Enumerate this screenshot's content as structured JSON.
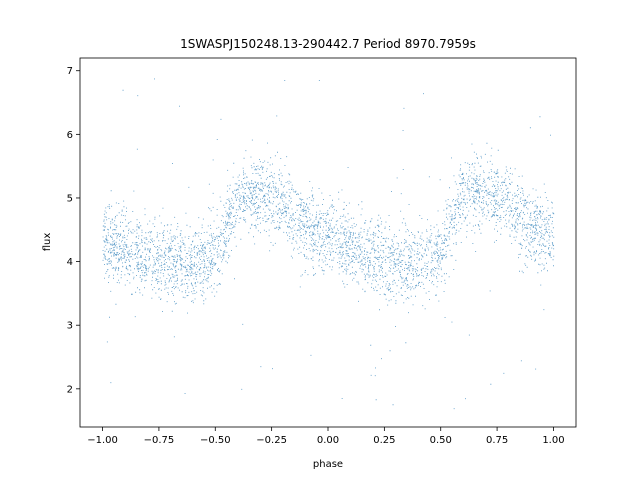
{
  "chart_data": {
    "type": "scatter",
    "title": "1SWASPJ150248.13-290442.7 Period 8970.7959s",
    "xlabel": "phase",
    "ylabel": "flux",
    "xlim": [
      -1.1,
      1.1
    ],
    "ylim": [
      1.4,
      7.2
    ],
    "xticks": [
      -1.0,
      -0.75,
      -0.5,
      -0.25,
      0.0,
      0.25,
      0.5,
      0.75,
      1.0
    ],
    "xtick_labels": [
      "−1.00",
      "−0.75",
      "−0.50",
      "−0.25",
      "0.00",
      "0.25",
      "0.50",
      "0.75",
      "1.00"
    ],
    "yticks": [
      2,
      3,
      4,
      5,
      6,
      7
    ],
    "ytick_labels": [
      "2",
      "3",
      "4",
      "5",
      "6",
      "7"
    ],
    "grid": false,
    "legend": "none",
    "marker_color": "#1f77b4",
    "x_range": [
      -1.0,
      1.0
    ],
    "phase_folded": true,
    "mean_flux_profile": {
      "phase": [
        -1.0,
        -0.9,
        -0.8,
        -0.7,
        -0.6,
        -0.5,
        -0.45,
        -0.4,
        -0.35,
        -0.3,
        -0.25,
        -0.2,
        -0.15,
        -0.1,
        -0.05,
        0.0,
        0.1,
        0.2,
        0.3,
        0.4,
        0.5,
        0.55,
        0.6,
        0.65,
        0.7,
        0.75,
        0.8,
        0.85,
        0.9,
        0.95,
        1.0
      ],
      "flux": [
        4.3,
        4.2,
        4.1,
        4.0,
        4.0,
        4.1,
        4.6,
        5.0,
        5.1,
        5.1,
        5.0,
        4.9,
        4.7,
        4.55,
        4.45,
        4.35,
        4.2,
        4.05,
        4.0,
        4.0,
        4.1,
        4.6,
        5.0,
        5.1,
        5.1,
        5.0,
        4.9,
        4.7,
        4.55,
        4.45,
        4.35
      ]
    },
    "scatter_sigma": 0.3,
    "outlier_range": [
      1.6,
      7.0
    ]
  }
}
